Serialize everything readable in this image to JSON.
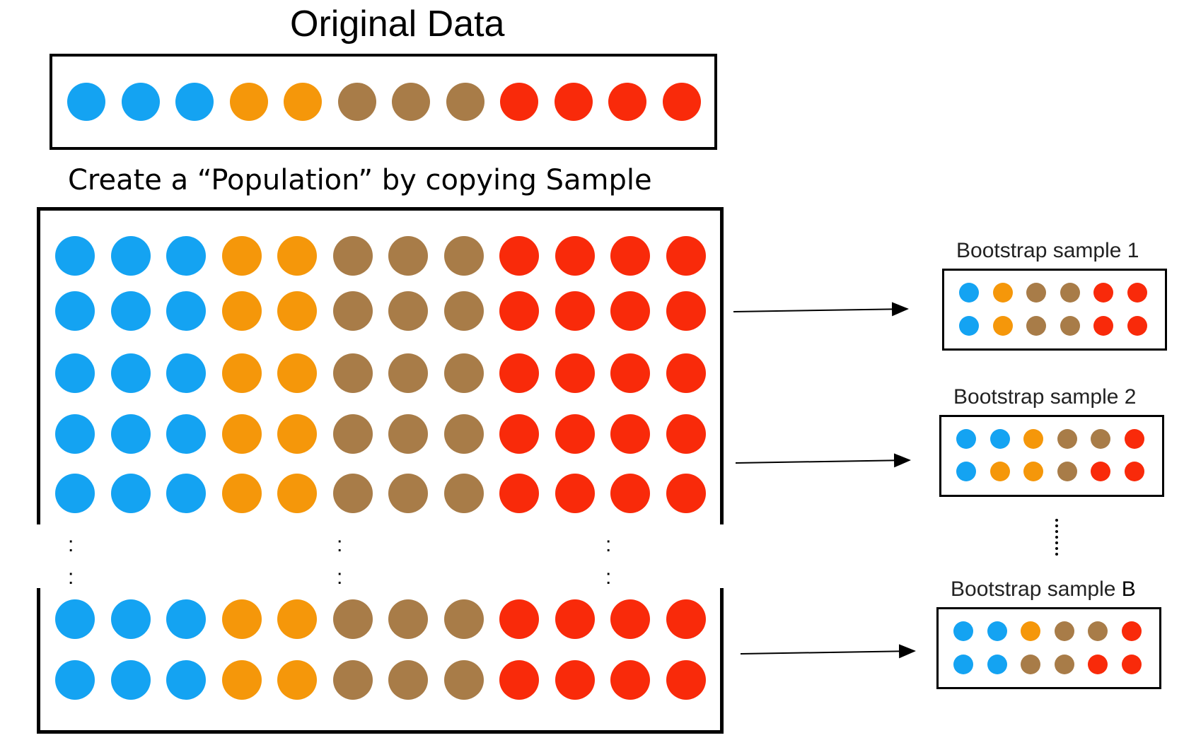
{
  "title": "Original Data",
  "subtitle": "Create a “Population” by copying Sample",
  "colors": {
    "blue": "#14a3f2",
    "orange": "#f5970a",
    "brown": "#a87c48",
    "red": "#f92a0a"
  },
  "original_sample": [
    "blue",
    "blue",
    "blue",
    "orange",
    "orange",
    "brown",
    "brown",
    "brown",
    "red",
    "red",
    "red",
    "red"
  ],
  "population_rows_shown": 7,
  "ellipsis_marker": ":",
  "bootstrap_samples": [
    {
      "label": "Bootstrap sample 1",
      "rows": [
        [
          "blue",
          "orange",
          "brown",
          "brown",
          "red",
          "red"
        ],
        [
          "blue",
          "orange",
          "brown",
          "brown",
          "red",
          "red"
        ]
      ]
    },
    {
      "label": "Bootstrap sample 2",
      "rows": [
        [
          "blue",
          "blue",
          "orange",
          "brown",
          "brown",
          "red"
        ],
        [
          "blue",
          "orange",
          "orange",
          "brown",
          "red",
          "red"
        ]
      ]
    },
    {
      "label": "Bootstrap sample ",
      "label_suffix": "B",
      "rows": [
        [
          "blue",
          "blue",
          "orange",
          "brown",
          "brown",
          "red"
        ],
        [
          "blue",
          "blue",
          "brown",
          "brown",
          "red",
          "red"
        ]
      ]
    }
  ]
}
